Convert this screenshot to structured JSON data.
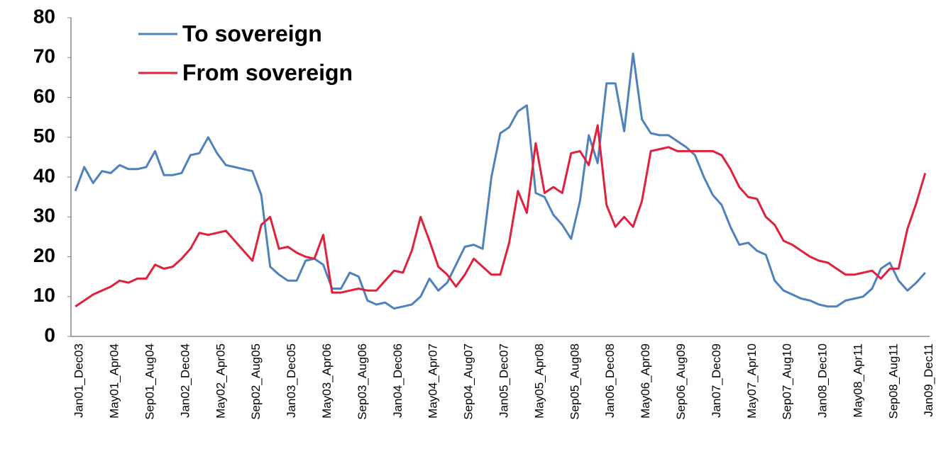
{
  "chart_data": {
    "type": "line",
    "categories": [
      "Jan01_Dec03",
      null,
      null,
      null,
      "May01_Apr04",
      null,
      null,
      null,
      "Sep01_Aug04",
      null,
      null,
      null,
      "Jan02_Dec04",
      null,
      null,
      null,
      "May02_Apr05",
      null,
      null,
      null,
      "Sep02_Aug05",
      null,
      null,
      null,
      "Jan03_Dec05",
      null,
      null,
      null,
      "May03_Apr06",
      null,
      null,
      null,
      "Sep03_Aug06",
      null,
      null,
      null,
      "Jan04_Dec06",
      null,
      null,
      null,
      "May04_Apr07",
      null,
      null,
      null,
      "Sep04_Aug07",
      null,
      null,
      null,
      "Jan05_Dec07",
      null,
      null,
      null,
      "May05_Apr08",
      null,
      null,
      null,
      "Sep05_Aug08",
      null,
      null,
      null,
      "Jan06_Dec08",
      null,
      null,
      null,
      "May06_Apr09",
      null,
      null,
      null,
      "Sep06_Aug09",
      null,
      null,
      null,
      "Jan07_Dec09",
      null,
      null,
      null,
      "May07_Apr10",
      null,
      null,
      null,
      "Sep07_Aug10",
      null,
      null,
      null,
      "Jan08_Dec10",
      null,
      null,
      null,
      "May08_Apr11",
      null,
      null,
      null,
      "Sep08_Aug11",
      null,
      null,
      null,
      "Jan09_Dec11"
    ],
    "series": [
      {
        "name": "To sovereign",
        "color": "#4f81bd",
        "values": [
          36.5,
          42.5,
          38.5,
          41.5,
          41,
          43,
          42,
          42,
          42.5,
          46.5,
          40.5,
          40.5,
          41,
          45.5,
          46,
          50,
          46,
          43,
          42.5,
          42,
          41.5,
          35.5,
          17.5,
          15.5,
          14,
          14,
          19,
          19.5,
          18,
          12,
          12,
          16,
          15,
          9,
          8,
          8.5,
          7,
          7.5,
          8,
          10,
          14.5,
          11.5,
          13.5,
          18,
          22.5,
          23,
          22,
          40,
          51,
          52.5,
          56.5,
          58,
          36,
          35,
          30.5,
          28,
          24.5,
          34,
          50.5,
          43.5,
          63.5,
          63.5,
          51.5,
          71,
          54.5,
          51,
          50.5,
          50.5,
          49,
          47.5,
          45.5,
          40,
          35.5,
          33,
          27.5,
          23,
          23.5,
          21.5,
          20.5,
          14,
          11.5,
          10.5,
          9.5,
          9,
          8,
          7.5,
          7.5,
          9,
          9.5,
          10,
          12,
          17,
          18.5,
          14,
          11.5,
          13.5,
          16
        ]
      },
      {
        "name": "From sovereign",
        "color": "#e0203c",
        "values": [
          7.5,
          9,
          10.5,
          11.5,
          12.5,
          14,
          13.5,
          14.5,
          14.5,
          18,
          17,
          17.5,
          19.5,
          22,
          26,
          25.5,
          26,
          26.5,
          24,
          21.5,
          19,
          28,
          30,
          22,
          22.5,
          21,
          20,
          19.5,
          25.5,
          11,
          11,
          11.5,
          12,
          11.5,
          11.5,
          14,
          16.5,
          16,
          21.5,
          30,
          24,
          17.5,
          15.5,
          12.5,
          15.5,
          19.5,
          17.5,
          15.5,
          15.5,
          23.5,
          36.5,
          31,
          48.5,
          36,
          37.5,
          36,
          46,
          46.5,
          43,
          53,
          33,
          27.5,
          30,
          27.5,
          34,
          46.5,
          47,
          47.5,
          46.5,
          46.5,
          46.5,
          46.5,
          46.5,
          45.5,
          42,
          37.5,
          35,
          34.5,
          30,
          28,
          24,
          23,
          21.5,
          20,
          19,
          18.5,
          17,
          15.5,
          15.5,
          16,
          16.5,
          14.5,
          17,
          17,
          27,
          33.5,
          41
        ]
      }
    ],
    "ylim": [
      0,
      80
    ],
    "yticks": [
      0,
      10,
      20,
      30,
      40,
      50,
      60,
      70,
      80
    ],
    "grid": false,
    "legend": "upper left"
  }
}
